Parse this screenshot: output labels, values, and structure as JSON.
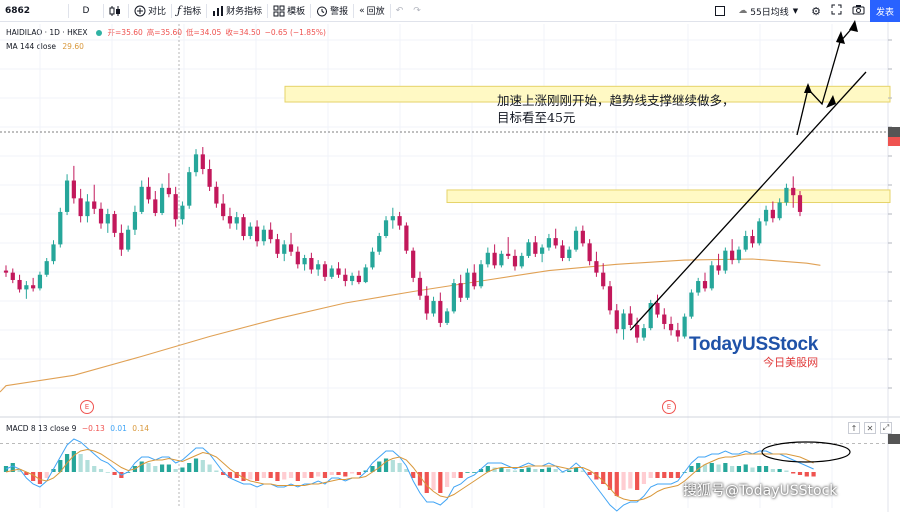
{
  "toolbar": {
    "symbol": "6862",
    "interval": "D",
    "compare_label": "对比",
    "indicators_label": "指标",
    "financials_label": "财务指标",
    "templates_label": "模板",
    "alert_label": "警报",
    "replay_label": "回放",
    "ma_selector_label": "55日均线",
    "publish_label": "发表"
  },
  "legend": {
    "symbol": "HAIDILAO · 1D · HKEX",
    "open": "开=35.60",
    "high": "高=35.60",
    "low": "低=34.05",
    "close": "收=34.50",
    "change": "−0.65 (−1.85%)",
    "ma_label": "MA 144 close",
    "ma_value": "29.60"
  },
  "macd_legend": {
    "label": "MACD 8 13 close 9",
    "v1": "−0.13",
    "v2": "0.01",
    "v3": "0.14"
  },
  "annotation": {
    "line1": "加速上涨刚刚开始，趋势线支撑继续做多，",
    "line2": "目标看至45元"
  },
  "logo": {
    "en": "TodayUSStock",
    "cn": "今日美股网"
  },
  "watermark": "搜狐号@TodayUSStock",
  "earnings_marker": "E",
  "colors": {
    "up": "#26a69a",
    "down": "#c2185b",
    "ma": "#e0a155",
    "zone_fill": "#fff9c4",
    "zone_stroke": "#e6d36a",
    "macd_line": "#42a5f5",
    "signal_line": "#d9983b",
    "hist_up": "#26a69a",
    "hist_down": "#ef5350"
  },
  "chart_data": {
    "type": "candlestick",
    "note_series": "daily candles, price units (HKD)",
    "price_range": [
      18,
      50
    ],
    "candles": [
      [
        29.6,
        30.1,
        29.0,
        29.4
      ],
      [
        29.4,
        29.8,
        28.4,
        28.7
      ],
      [
        28.7,
        29.2,
        27.5,
        27.8
      ],
      [
        27.8,
        28.6,
        26.9,
        28.2
      ],
      [
        28.2,
        28.9,
        27.6,
        27.9
      ],
      [
        27.9,
        29.5,
        27.7,
        29.2
      ],
      [
        29.2,
        30.8,
        29.0,
        30.5
      ],
      [
        30.5,
        32.5,
        30.2,
        32.1
      ],
      [
        32.1,
        35.6,
        31.8,
        35.2
      ],
      [
        35.2,
        38.8,
        34.9,
        38.2
      ],
      [
        38.2,
        39.6,
        36.0,
        36.5
      ],
      [
        36.5,
        37.4,
        34.2,
        34.8
      ],
      [
        34.8,
        36.9,
        34.2,
        36.2
      ],
      [
        36.2,
        37.8,
        35.0,
        35.5
      ],
      [
        35.5,
        36.1,
        33.6,
        34.1
      ],
      [
        34.1,
        35.5,
        33.2,
        35.0
      ],
      [
        35.0,
        35.3,
        32.8,
        33.2
      ],
      [
        33.2,
        34.0,
        31.0,
        31.6
      ],
      [
        31.6,
        33.9,
        31.4,
        33.5
      ],
      [
        33.5,
        35.8,
        33.0,
        35.2
      ],
      [
        35.2,
        38.2,
        35.0,
        37.6
      ],
      [
        37.6,
        38.5,
        36.0,
        36.4
      ],
      [
        36.4,
        37.2,
        34.8,
        35.1
      ],
      [
        35.1,
        37.9,
        34.9,
        37.5
      ],
      [
        37.5,
        38.9,
        36.6,
        36.9
      ],
      [
        36.9,
        37.6,
        33.8,
        34.5
      ],
      [
        34.5,
        36.2,
        34.0,
        35.8
      ],
      [
        35.8,
        39.5,
        35.5,
        39.0
      ],
      [
        39.0,
        41.2,
        38.6,
        40.7
      ],
      [
        40.7,
        41.4,
        38.8,
        39.3
      ],
      [
        39.3,
        40.2,
        37.2,
        37.6
      ],
      [
        37.6,
        38.1,
        35.6,
        36.0
      ],
      [
        36.0,
        36.9,
        34.4,
        34.8
      ],
      [
        34.8,
        35.6,
        33.6,
        34.1
      ],
      [
        34.1,
        35.2,
        33.5,
        34.7
      ],
      [
        34.7,
        35.0,
        32.5,
        32.9
      ],
      [
        32.9,
        34.2,
        32.6,
        33.8
      ],
      [
        33.8,
        34.4,
        31.9,
        32.4
      ],
      [
        32.4,
        33.9,
        32.0,
        33.5
      ],
      [
        33.5,
        34.2,
        32.2,
        32.6
      ],
      [
        32.6,
        33.1,
        30.8,
        31.2
      ],
      [
        31.2,
        32.5,
        30.5,
        32.1
      ],
      [
        32.1,
        33.2,
        31.0,
        31.4
      ],
      [
        31.4,
        31.9,
        29.8,
        30.2
      ],
      [
        30.2,
        31.1,
        29.6,
        30.8
      ],
      [
        30.8,
        31.3,
        29.3,
        29.7
      ],
      [
        29.7,
        30.6,
        29.1,
        30.2
      ],
      [
        30.2,
        30.5,
        28.6,
        29.0
      ],
      [
        29.0,
        30.1,
        28.8,
        29.8
      ],
      [
        29.8,
        30.4,
        28.9,
        29.2
      ],
      [
        29.2,
        29.8,
        28.1,
        28.6
      ],
      [
        28.6,
        29.4,
        28.2,
        29.1
      ],
      [
        29.1,
        29.6,
        28.3,
        28.5
      ],
      [
        28.5,
        30.2,
        28.4,
        29.9
      ],
      [
        29.9,
        31.8,
        29.7,
        31.4
      ],
      [
        31.4,
        33.2,
        31.1,
        32.9
      ],
      [
        32.9,
        34.8,
        32.7,
        34.4
      ],
      [
        34.4,
        35.6,
        33.6,
        34.8
      ],
      [
        34.8,
        35.2,
        33.5,
        33.9
      ],
      [
        33.9,
        34.2,
        31.2,
        31.5
      ],
      [
        31.5,
        31.8,
        28.5,
        28.9
      ],
      [
        28.9,
        29.5,
        26.8,
        27.2
      ],
      [
        27.2,
        28.1,
        24.9,
        25.5
      ],
      [
        25.5,
        27.1,
        25.2,
        26.7
      ],
      [
        26.7,
        27.5,
        24.2,
        24.6
      ],
      [
        24.6,
        26.0,
        24.4,
        25.7
      ],
      [
        25.7,
        28.8,
        25.5,
        28.4
      ],
      [
        28.4,
        29.2,
        26.6,
        27.0
      ],
      [
        27.0,
        29.8,
        26.8,
        29.4
      ],
      [
        29.4,
        30.2,
        27.8,
        28.1
      ],
      [
        28.1,
        30.6,
        27.9,
        30.2
      ],
      [
        30.2,
        31.8,
        29.9,
        31.3
      ],
      [
        31.3,
        32.1,
        29.8,
        30.1
      ],
      [
        30.1,
        31.5,
        29.9,
        31.2
      ],
      [
        31.2,
        32.8,
        30.7,
        31.0
      ],
      [
        31.0,
        31.6,
        29.6,
        30.0
      ],
      [
        30.0,
        31.3,
        29.8,
        31.0
      ],
      [
        31.0,
        32.6,
        30.8,
        32.3
      ],
      [
        32.3,
        32.9,
        30.9,
        31.2
      ],
      [
        31.2,
        32.1,
        30.4,
        31.8
      ],
      [
        31.8,
        33.1,
        31.5,
        32.7
      ],
      [
        32.7,
        33.6,
        31.7,
        32.0
      ],
      [
        32.0,
        32.5,
        30.5,
        30.8
      ],
      [
        30.8,
        31.9,
        30.5,
        31.6
      ],
      [
        31.6,
        33.8,
        31.4,
        33.4
      ],
      [
        33.4,
        33.9,
        31.9,
        32.2
      ],
      [
        32.2,
        32.6,
        30.1,
        30.5
      ],
      [
        30.5,
        31.4,
        29.0,
        29.4
      ],
      [
        29.4,
        30.3,
        27.8,
        28.1
      ],
      [
        28.1,
        28.6,
        25.4,
        25.8
      ],
      [
        25.8,
        26.4,
        23.6,
        24.0
      ],
      [
        24.0,
        25.9,
        23.0,
        25.5
      ],
      [
        25.5,
        26.2,
        24.1,
        24.4
      ],
      [
        24.4,
        25.1,
        22.7,
        23.2
      ],
      [
        23.2,
        24.5,
        22.9,
        24.1
      ],
      [
        24.1,
        26.8,
        23.9,
        26.5
      ],
      [
        26.5,
        27.3,
        25.1,
        25.4
      ],
      [
        25.4,
        26.0,
        24.0,
        24.5
      ],
      [
        24.5,
        25.2,
        23.4,
        23.9
      ],
      [
        23.9,
        24.6,
        22.8,
        23.3
      ],
      [
        23.3,
        25.5,
        23.1,
        25.2
      ],
      [
        25.2,
        27.8,
        25.0,
        27.5
      ],
      [
        27.5,
        28.9,
        27.2,
        28.6
      ],
      [
        28.6,
        29.4,
        27.6,
        27.9
      ],
      [
        27.9,
        30.5,
        27.7,
        30.1
      ],
      [
        30.1,
        31.2,
        29.2,
        29.6
      ],
      [
        29.6,
        31.8,
        29.3,
        31.5
      ],
      [
        31.5,
        32.6,
        30.2,
        30.6
      ],
      [
        30.6,
        31.9,
        30.3,
        31.6
      ],
      [
        31.6,
        33.4,
        31.4,
        32.9
      ],
      [
        32.9,
        33.5,
        31.8,
        32.2
      ],
      [
        32.2,
        34.6,
        32.0,
        34.3
      ],
      [
        34.3,
        35.8,
        33.9,
        35.4
      ],
      [
        35.4,
        36.2,
        34.2,
        34.6
      ],
      [
        34.6,
        36.5,
        34.4,
        36.1
      ],
      [
        36.1,
        37.9,
        35.8,
        37.5
      ],
      [
        37.5,
        38.6,
        35.6,
        36.8
      ],
      [
        36.8,
        37.2,
        34.8,
        35.2
      ]
    ],
    "ma144": [
      [
        0,
        18.6
      ],
      [
        10,
        19.6
      ],
      [
        20,
        21.4
      ],
      [
        30,
        23.3
      ],
      [
        40,
        25.0
      ],
      [
        50,
        26.5
      ],
      [
        60,
        27.6
      ],
      [
        70,
        28.6
      ],
      [
        80,
        29.6
      ],
      [
        90,
        30.2
      ],
      [
        100,
        30.6
      ],
      [
        110,
        30.7
      ],
      [
        118,
        30.3
      ],
      [
        120,
        30.1
      ]
    ],
    "zones": [
      {
        "y1": 47.2,
        "y2": 45.7
      },
      {
        "y1": 37.3,
        "y2": 36.1
      }
    ],
    "trendline": [
      [
        92,
        23.9
      ],
      [
        117,
        35.6
      ],
      [
        125,
        44.8
      ]
    ],
    "macd": {
      "range": [
        -1.2,
        1.2
      ],
      "histogram": [
        0.2,
        0.3,
        0.1,
        -0.1,
        -0.3,
        -0.4,
        -0.2,
        0.1,
        0.4,
        0.6,
        0.7,
        0.6,
        0.4,
        0.2,
        0.1,
        0.0,
        -0.1,
        -0.2,
        0.0,
        0.2,
        0.35,
        0.3,
        0.2,
        0.25,
        0.25,
        0.1,
        0.15,
        0.3,
        0.45,
        0.4,
        0.25,
        0.05,
        -0.1,
        -0.2,
        -0.2,
        -0.3,
        -0.25,
        -0.3,
        -0.2,
        -0.2,
        -0.3,
        -0.25,
        -0.2,
        -0.3,
        -0.2,
        -0.2,
        -0.15,
        -0.2,
        -0.1,
        -0.1,
        -0.15,
        -0.05,
        -0.1,
        0.05,
        0.2,
        0.35,
        0.45,
        0.4,
        0.3,
        0.1,
        -0.2,
        -0.45,
        -0.7,
        -0.6,
        -0.7,
        -0.5,
        -0.2,
        -0.2,
        0.0,
        0.0,
        0.1,
        0.2,
        0.15,
        0.15,
        0.1,
        0.05,
        0.1,
        0.15,
        0.1,
        0.1,
        0.15,
        0.1,
        0.0,
        0.05,
        0.15,
        0.05,
        -0.1,
        -0.25,
        -0.4,
        -0.6,
        -0.8,
        -0.6,
        -0.55,
        -0.6,
        -0.4,
        -0.2,
        -0.2,
        -0.2,
        -0.2,
        -0.2,
        0.0,
        0.2,
        0.3,
        0.25,
        0.3,
        0.25,
        0.3,
        0.2,
        0.2,
        0.25,
        0.15,
        0.2,
        0.2,
        0.1,
        0.1,
        0.05,
        -0.05,
        -0.1,
        -0.15,
        -0.15
      ],
      "macd_line": [
        0.1,
        0.2,
        0.1,
        -0.2,
        -0.4,
        -0.5,
        -0.3,
        0.1,
        0.5,
        0.9,
        1.1,
        1.0,
        0.8,
        0.6,
        0.4,
        0.3,
        0.1,
        -0.1,
        0.0,
        0.3,
        0.5,
        0.5,
        0.4,
        0.5,
        0.5,
        0.3,
        0.4,
        0.6,
        0.8,
        0.8,
        0.6,
        0.3,
        0.0,
        -0.2,
        -0.3,
        -0.4,
        -0.4,
        -0.5,
        -0.4,
        -0.4,
        -0.5,
        -0.5,
        -0.4,
        -0.5,
        -0.4,
        -0.4,
        -0.3,
        -0.4,
        -0.2,
        -0.2,
        -0.3,
        -0.2,
        -0.2,
        0.0,
        0.3,
        0.5,
        0.7,
        0.7,
        0.5,
        0.2,
        -0.3,
        -0.7,
        -1.0,
        -1.0,
        -1.1,
        -0.9,
        -0.5,
        -0.4,
        -0.2,
        -0.1,
        0.1,
        0.3,
        0.3,
        0.3,
        0.2,
        0.1,
        0.2,
        0.3,
        0.2,
        0.2,
        0.3,
        0.2,
        0.0,
        0.1,
        0.3,
        0.1,
        -0.2,
        -0.5,
        -0.8,
        -1.1,
        -1.3,
        -1.1,
        -1.0,
        -1.0,
        -0.8,
        -0.5,
        -0.4,
        -0.4,
        -0.4,
        -0.3,
        0.0,
        0.3,
        0.5,
        0.5,
        0.6,
        0.6,
        0.7,
        0.6,
        0.6,
        0.7,
        0.6,
        0.7,
        0.7,
        0.6,
        0.6,
        0.5,
        0.4,
        0.3,
        0.2,
        0.1
      ],
      "signal_line": [
        0.0,
        0.05,
        0.1,
        0.0,
        -0.1,
        -0.25,
        -0.3,
        -0.2,
        0.0,
        0.3,
        0.55,
        0.7,
        0.75,
        0.7,
        0.6,
        0.45,
        0.3,
        0.15,
        0.05,
        0.1,
        0.25,
        0.35,
        0.4,
        0.4,
        0.45,
        0.4,
        0.35,
        0.45,
        0.55,
        0.65,
        0.6,
        0.5,
        0.3,
        0.1,
        -0.05,
        -0.2,
        -0.3,
        -0.35,
        -0.4,
        -0.4,
        -0.45,
        -0.45,
        -0.45,
        -0.45,
        -0.45,
        -0.4,
        -0.4,
        -0.35,
        -0.3,
        -0.25,
        -0.25,
        -0.2,
        -0.2,
        -0.15,
        0.0,
        0.15,
        0.35,
        0.45,
        0.5,
        0.4,
        0.15,
        -0.15,
        -0.45,
        -0.65,
        -0.8,
        -0.85,
        -0.75,
        -0.6,
        -0.45,
        -0.3,
        -0.15,
        0.0,
        0.1,
        0.15,
        0.15,
        0.15,
        0.15,
        0.2,
        0.2,
        0.2,
        0.2,
        0.2,
        0.15,
        0.1,
        0.15,
        0.15,
        0.05,
        -0.1,
        -0.3,
        -0.55,
        -0.8,
        -0.9,
        -0.95,
        -0.95,
        -0.9,
        -0.8,
        -0.65,
        -0.55,
        -0.5,
        -0.45,
        -0.3,
        -0.1,
        0.1,
        0.25,
        0.35,
        0.45,
        0.5,
        0.5,
        0.55,
        0.6,
        0.6,
        0.6,
        0.6,
        0.6,
        0.6,
        0.6,
        0.55,
        0.5,
        0.4,
        0.3
      ]
    }
  }
}
